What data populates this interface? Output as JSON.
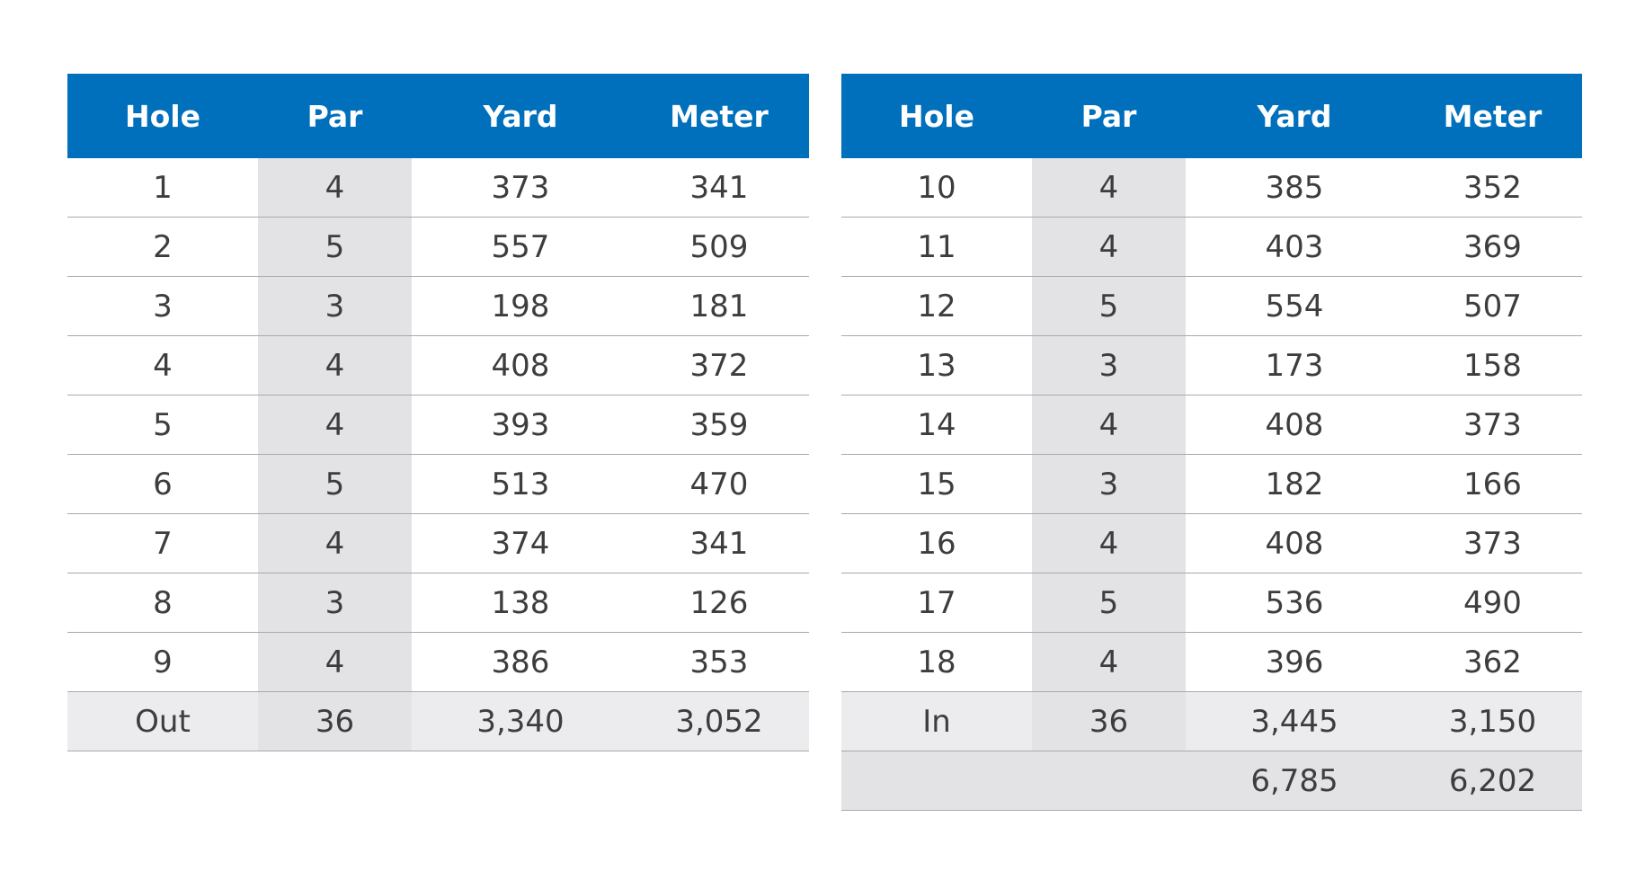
{
  "chart_data": [
    {
      "type": "table",
      "name_key": "front_nine",
      "columns": [
        "Hole",
        "Par",
        "Yard",
        "Meter"
      ],
      "rows": [
        [
          "1",
          "4",
          "373",
          "341"
        ],
        [
          "2",
          "5",
          "557",
          "509"
        ],
        [
          "3",
          "3",
          "198",
          "181"
        ],
        [
          "4",
          "4",
          "408",
          "372"
        ],
        [
          "5",
          "4",
          "393",
          "359"
        ],
        [
          "6",
          "5",
          "513",
          "470"
        ],
        [
          "7",
          "4",
          "374",
          "341"
        ],
        [
          "8",
          "3",
          "138",
          "126"
        ],
        [
          "9",
          "4",
          "386",
          "353"
        ]
      ],
      "total": [
        "Out",
        "36",
        "3,340",
        "3,052"
      ]
    },
    {
      "type": "table",
      "name_key": "back_nine",
      "columns": [
        "Hole",
        "Par",
        "Yard",
        "Meter"
      ],
      "rows": [
        [
          "10",
          "4",
          "385",
          "352"
        ],
        [
          "11",
          "4",
          "403",
          "369"
        ],
        [
          "12",
          "5",
          "554",
          "507"
        ],
        [
          "13",
          "3",
          "173",
          "158"
        ],
        [
          "14",
          "4",
          "408",
          "373"
        ],
        [
          "15",
          "3",
          "182",
          "166"
        ],
        [
          "16",
          "4",
          "408",
          "373"
        ],
        [
          "17",
          "5",
          "536",
          "490"
        ],
        [
          "18",
          "4",
          "396",
          "362"
        ]
      ],
      "total": [
        "In",
        "36",
        "3,445",
        "3,150"
      ],
      "grand_total": [
        "",
        "",
        "6,785",
        "6,202"
      ]
    }
  ],
  "colors": {
    "header_background": "#0070bc",
    "header_text": "#ffffff",
    "par_column_shade": "#e3e3e5",
    "total_row_shade": "#ececee",
    "row_divider": "#a9a9ab",
    "body_text": "#3d3d3d"
  }
}
